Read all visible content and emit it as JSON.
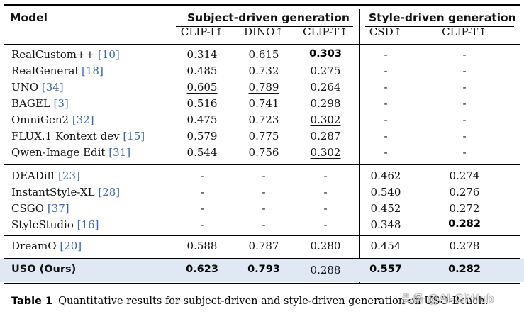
{
  "table": {
    "model_header": "Model",
    "group_subject": "Subject-driven generation",
    "group_style": "Style-driven generation",
    "metrics": [
      "CLIP-I↑",
      "DINO↑",
      "CLIP-T↑",
      "CSD↑",
      "CLIP-T↑"
    ],
    "rows": [
      {
        "name": "RealCustom++",
        "ref": "[10]",
        "values": [
          "0.314",
          "0.615",
          "0.303",
          "-",
          "-"
        ],
        "bold": [
          false,
          false,
          true,
          false,
          false
        ],
        "underline": [
          false,
          false,
          false,
          false,
          false
        ]
      },
      {
        "name": "RealGeneral",
        "ref": "[18]",
        "values": [
          "0.485",
          "0.732",
          "0.275",
          "-",
          "-"
        ],
        "bold": [
          false,
          false,
          false,
          false,
          false
        ],
        "underline": [
          false,
          false,
          false,
          false,
          false
        ]
      },
      {
        "name": "UNO",
        "ref": "[34]",
        "values": [
          "0.605",
          "0.789",
          "0.264",
          "-",
          "-"
        ],
        "bold": [
          false,
          false,
          false,
          false,
          false
        ],
        "underline": [
          true,
          true,
          false,
          false,
          false
        ]
      },
      {
        "name": "BAGEL",
        "ref": "[3]",
        "values": [
          "0.516",
          "0.741",
          "0.298",
          "-",
          "-"
        ],
        "bold": [
          false,
          false,
          false,
          false,
          false
        ],
        "underline": [
          false,
          false,
          false,
          false,
          false
        ]
      },
      {
        "name": "OmniGen2",
        "ref": "[32]",
        "values": [
          "0.475",
          "0.723",
          "0.302",
          "-",
          "-"
        ],
        "bold": [
          false,
          false,
          false,
          false,
          false
        ],
        "underline": [
          false,
          false,
          true,
          false,
          false
        ]
      },
      {
        "name": "FLUX.1 Kontext dev",
        "ref": "[15]",
        "values": [
          "0.579",
          "0.775",
          "0.287",
          "-",
          "-"
        ],
        "bold": [
          false,
          false,
          false,
          false,
          false
        ],
        "underline": [
          false,
          false,
          false,
          false,
          false
        ]
      },
      {
        "name": "Qwen-Image Edit",
        "ref": "[31]",
        "values": [
          "0.544",
          "0.756",
          "0.302",
          "-",
          "-"
        ],
        "bold": [
          false,
          false,
          false,
          false,
          false
        ],
        "underline": [
          false,
          false,
          true,
          false,
          false
        ]
      },
      {
        "name": "DEADiff",
        "ref": "[23]",
        "values": [
          "-",
          "-",
          "-",
          "0.462",
          "0.274"
        ],
        "bold": [
          false,
          false,
          false,
          false,
          false
        ],
        "underline": [
          false,
          false,
          false,
          false,
          false
        ]
      },
      {
        "name": "InstantStyle-XL",
        "ref": "[28]",
        "values": [
          "-",
          "-",
          "-",
          "0.540",
          "0.276"
        ],
        "bold": [
          false,
          false,
          false,
          false,
          false
        ],
        "underline": [
          false,
          false,
          false,
          true,
          false
        ]
      },
      {
        "name": "CSGO",
        "ref": "[37]",
        "values": [
          "-",
          "-",
          "-",
          "0.452",
          "0.272"
        ],
        "bold": [
          false,
          false,
          false,
          false,
          false
        ],
        "underline": [
          false,
          false,
          false,
          false,
          false
        ]
      },
      {
        "name": "StyleStudio",
        "ref": "[16]",
        "values": [
          "-",
          "-",
          "-",
          "0.348",
          "0.282"
        ],
        "bold": [
          false,
          false,
          false,
          false,
          true
        ],
        "underline": [
          false,
          false,
          false,
          false,
          false
        ]
      },
      {
        "name": "DreamO",
        "ref": "[20]",
        "values": [
          "0.588",
          "0.787",
          "0.280",
          "0.454",
          "0.278"
        ],
        "bold": [
          false,
          false,
          false,
          false,
          false
        ],
        "underline": [
          false,
          false,
          false,
          false,
          true
        ]
      },
      {
        "name": "USO (Ours)",
        "ref": "",
        "values": [
          "0.623",
          "0.793",
          "0.288",
          "0.557",
          "0.282"
        ],
        "bold": [
          true,
          true,
          false,
          true,
          true
        ],
        "underline": [
          false,
          false,
          false,
          false,
          false
        ]
      }
    ]
  },
  "caption": {
    "label": "Table 1",
    "text": "Quantitative results for subject-driven and style-driven generation on USO-Bench."
  },
  "watermark": "头条 @AI-GitHub",
  "colors": {
    "highlight_row": "#dfe8f3",
    "reference_link": "#3a66b8"
  }
}
